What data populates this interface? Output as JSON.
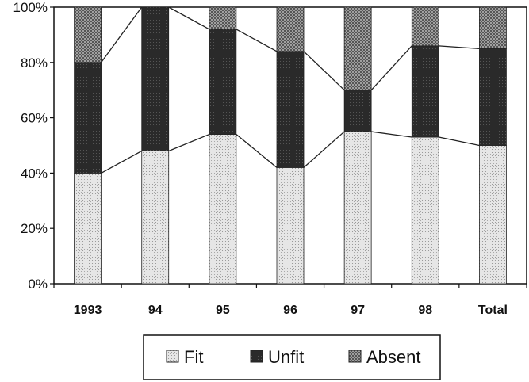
{
  "chart_data": {
    "type": "bar",
    "stacked": true,
    "normalized": true,
    "categories": [
      "1993",
      "94",
      "95",
      "96",
      "97",
      "98",
      "Total"
    ],
    "series": [
      {
        "name": "Fit",
        "values": [
          40,
          48,
          54,
          42,
          55,
          53,
          50
        ]
      },
      {
        "name": "Unfit",
        "values": [
          40,
          52,
          38,
          42,
          15,
          33,
          35
        ]
      },
      {
        "name": "Absent",
        "values": [
          20,
          0,
          8,
          16,
          30,
          14,
          15
        ]
      }
    ],
    "yticks": [
      "0%",
      "20%",
      "40%",
      "60%",
      "80%",
      "100%"
    ],
    "ylim": [
      0,
      100
    ],
    "legend_position": "bottom",
    "connector_lines": true,
    "colors": {
      "fit": "#e4e4e4",
      "unfit": "#2a2a2a",
      "absent": "#8a8a8a"
    }
  }
}
